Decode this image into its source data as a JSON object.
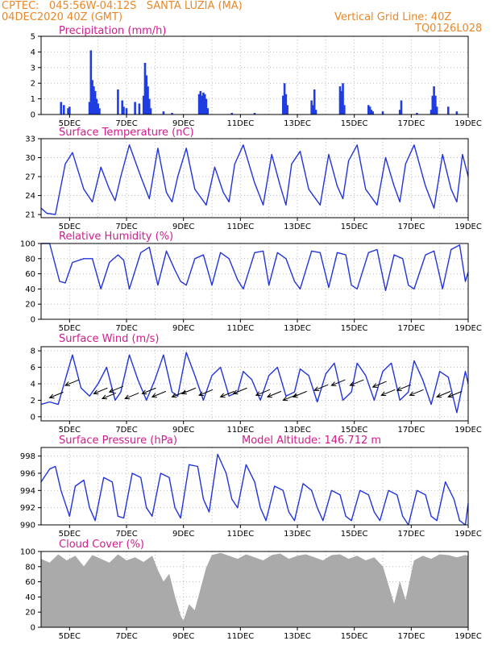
{
  "header": {
    "line1_left": "CPTEC:   045:56W-04:12S   SANTA LUZIA (MA)",
    "line2_left": "04DEC2020 40Z (GMT)",
    "line1_right": "Vertical Grid Line: 40Z",
    "line2_right": "TQ0126L028"
  },
  "colors": {
    "header": "#e8882a",
    "title": "#d01c8b",
    "series": "#2233dd",
    "bars": "#1f3de0",
    "cloud": "#aaaaaa",
    "grid": "#bbbbbb"
  },
  "chart_data": [
    {
      "type": "bar",
      "title": "Precipitation (mm/h)",
      "x_tick_labels": [
        "5DEC",
        "7DEC",
        "9DEC",
        "11DEC",
        "13DEC",
        "15DEC",
        "17DEC",
        "19DEC"
      ],
      "y_ticks": [
        0,
        1,
        2,
        3,
        4,
        5
      ],
      "ylim": [
        0,
        5
      ],
      "x": [
        4.7,
        4.8,
        4.95,
        5.0,
        5.7,
        5.75,
        5.8,
        5.85,
        5.9,
        5.95,
        6.0,
        6.05,
        6.7,
        6.85,
        6.9,
        7.0,
        7.3,
        7.45,
        7.6,
        7.65,
        7.7,
        7.75,
        7.8,
        7.85,
        8.3,
        8.6,
        9.55,
        9.6,
        9.65,
        9.7,
        9.75,
        9.8,
        9.85,
        10.7,
        11.5,
        12.5,
        12.55,
        12.6,
        12.65,
        13.5,
        13.55,
        13.6,
        13.65,
        14.5,
        14.55,
        14.6,
        14.65,
        15.5,
        15.55,
        15.6,
        15.65,
        16.0,
        16.6,
        16.65,
        17.2,
        17.7,
        17.75,
        17.8,
        17.85,
        17.9,
        18.3,
        18.6
      ],
      "values": [
        0.8,
        0.6,
        0.4,
        0.5,
        0.8,
        4.1,
        2.2,
        1.8,
        1.5,
        1.0,
        0.7,
        0.4,
        1.6,
        0.9,
        0.5,
        0.4,
        0.8,
        0.7,
        1.2,
        3.3,
        2.5,
        1.8,
        1.0,
        0.4,
        0.2,
        0.1,
        1.3,
        1.5,
        1.2,
        1.4,
        1.3,
        1.0,
        0.4,
        0.1,
        0.1,
        1.2,
        2.0,
        1.3,
        0.6,
        0.9,
        0.6,
        1.6,
        0.3,
        1.8,
        1.5,
        2.0,
        0.6,
        0.6,
        0.5,
        0.3,
        0.2,
        0.2,
        0.3,
        0.9,
        0.1,
        0.3,
        1.2,
        1.8,
        1.2,
        0.5,
        0.5,
        0.2
      ]
    },
    {
      "type": "line",
      "title": "Surface Temperature (nC)",
      "x_tick_labels": [
        "5DEC",
        "7DEC",
        "9DEC",
        "11DEC",
        "13DEC",
        "15DEC",
        "17DEC",
        "19DEC"
      ],
      "y_ticks": [
        21,
        24,
        27,
        30,
        33
      ],
      "ylim": [
        20.5,
        33
      ],
      "x": [
        4.0,
        4.2,
        4.5,
        4.85,
        5.1,
        5.5,
        5.8,
        6.1,
        6.4,
        6.6,
        6.8,
        7.1,
        7.5,
        7.8,
        8.1,
        8.4,
        8.6,
        8.8,
        9.1,
        9.4,
        9.8,
        10.1,
        10.4,
        10.6,
        10.8,
        11.1,
        11.5,
        11.8,
        12.1,
        12.4,
        12.6,
        12.8,
        13.1,
        13.4,
        13.8,
        14.1,
        14.4,
        14.6,
        14.8,
        15.1,
        15.4,
        15.8,
        16.1,
        16.4,
        16.6,
        16.8,
        17.1,
        17.5,
        17.8,
        18.1,
        18.4,
        18.6,
        18.8,
        19.0
      ],
      "values": [
        22.0,
        21.2,
        21.0,
        29.0,
        30.8,
        25.0,
        23.0,
        28.5,
        25.0,
        23.2,
        27.0,
        32.0,
        27.0,
        23.5,
        31.5,
        24.5,
        23.0,
        27.0,
        31.5,
        25.0,
        22.5,
        28.5,
        24.5,
        23.0,
        29.0,
        32.0,
        26.0,
        22.5,
        30.5,
        25.5,
        22.5,
        29.0,
        31.0,
        25.0,
        22.5,
        30.5,
        25.5,
        23.5,
        29.5,
        32.0,
        25.0,
        22.5,
        30.0,
        25.5,
        23.0,
        29.0,
        32.0,
        25.5,
        22.0,
        30.5,
        25.0,
        23.0,
        30.5,
        27.0
      ]
    },
    {
      "type": "line",
      "title": "Relative Humidity (%)",
      "x_tick_labels": [
        "5DEC",
        "7DEC",
        "9DEC",
        "11DEC",
        "13DEC",
        "15DEC",
        "17DEC",
        "19DEC"
      ],
      "y_ticks": [
        0,
        20,
        40,
        60,
        80,
        100
      ],
      "ylim": [
        0,
        100
      ],
      "x": [
        4.0,
        4.3,
        4.65,
        4.85,
        5.1,
        5.5,
        5.8,
        6.1,
        6.4,
        6.7,
        6.9,
        7.1,
        7.5,
        7.8,
        8.1,
        8.4,
        8.7,
        8.9,
        9.1,
        9.4,
        9.7,
        10.0,
        10.3,
        10.6,
        10.9,
        11.1,
        11.5,
        11.8,
        12.0,
        12.3,
        12.6,
        12.9,
        13.1,
        13.5,
        13.8,
        14.1,
        14.4,
        14.7,
        14.9,
        15.1,
        15.5,
        15.8,
        16.1,
        16.4,
        16.7,
        16.9,
        17.1,
        17.5,
        17.8,
        18.1,
        18.4,
        18.7,
        18.9,
        19.0
      ],
      "values": [
        100,
        100,
        50,
        48,
        75,
        80,
        80,
        40,
        75,
        85,
        78,
        40,
        88,
        95,
        45,
        90,
        65,
        50,
        45,
        80,
        85,
        45,
        88,
        80,
        52,
        40,
        88,
        90,
        45,
        88,
        80,
        50,
        40,
        90,
        88,
        42,
        88,
        85,
        45,
        40,
        88,
        92,
        38,
        85,
        80,
        45,
        40,
        85,
        90,
        40,
        92,
        98,
        50,
        62
      ]
    },
    {
      "type": "line",
      "title": "Surface Wind (m/s)",
      "x_tick_labels": [
        "5DEC",
        "7DEC",
        "9DEC",
        "11DEC",
        "13DEC",
        "15DEC",
        "17DEC",
        "19DEC"
      ],
      "y_ticks": [
        0,
        2,
        4,
        6,
        8
      ],
      "ylim": [
        -0.5,
        8.5
      ],
      "x": [
        4.0,
        4.3,
        4.6,
        4.85,
        5.1,
        5.4,
        5.7,
        6.0,
        6.3,
        6.6,
        6.8,
        7.1,
        7.4,
        7.7,
        8.0,
        8.3,
        8.6,
        8.8,
        9.1,
        9.4,
        9.7,
        10.0,
        10.3,
        10.6,
        10.9,
        11.1,
        11.4,
        11.7,
        12.0,
        12.3,
        12.6,
        12.9,
        13.1,
        13.4,
        13.7,
        14.0,
        14.3,
        14.6,
        14.9,
        15.1,
        15.4,
        15.7,
        16.0,
        16.3,
        16.6,
        16.9,
        17.1,
        17.4,
        17.7,
        18.0,
        18.3,
        18.6,
        18.9,
        19.0
      ],
      "values": [
        1.5,
        1.8,
        1.5,
        4.5,
        7.5,
        3.5,
        2.5,
        4.0,
        6.0,
        2.0,
        3.0,
        7.5,
        4.5,
        2.0,
        4.5,
        7.5,
        3.0,
        2.5,
        7.8,
        5.0,
        2.0,
        5.0,
        6.0,
        2.5,
        3.0,
        5.5,
        4.5,
        2.0,
        5.0,
        6.0,
        2.5,
        3.0,
        5.8,
        5.0,
        1.8,
        5.2,
        6.5,
        2.0,
        3.0,
        6.5,
        5.0,
        2.0,
        5.5,
        6.5,
        2.0,
        3.0,
        6.8,
        4.5,
        1.5,
        5.5,
        4.8,
        0.5,
        5.5,
        4.0
      ],
      "wind_arrows": [
        [
          4.3,
          2.3
        ],
        [
          4.85,
          3.8
        ],
        [
          5.85,
          2.8
        ],
        [
          6.15,
          2.2
        ],
        [
          6.4,
          3.0
        ],
        [
          6.95,
          2.2
        ],
        [
          7.55,
          2.8
        ],
        [
          7.9,
          2.4
        ],
        [
          8.6,
          2.4
        ],
        [
          8.95,
          2.8
        ],
        [
          9.55,
          2.6
        ],
        [
          10.3,
          2.4
        ],
        [
          10.75,
          2.8
        ],
        [
          11.55,
          2.6
        ],
        [
          11.95,
          2.4
        ],
        [
          12.5,
          2.0
        ],
        [
          12.85,
          2.4
        ],
        [
          13.6,
          3.2
        ],
        [
          14.2,
          3.8
        ],
        [
          14.85,
          3.8
        ],
        [
          15.65,
          3.6
        ],
        [
          15.95,
          2.6
        ],
        [
          16.5,
          3.2
        ],
        [
          16.95,
          2.6
        ],
        [
          17.9,
          2.4
        ],
        [
          18.3,
          2.4
        ]
      ]
    },
    {
      "type": "line",
      "title": "Surface Pressure (hPa)",
      "annotation": "Model Altitude: 146.712 m",
      "x_tick_labels": [
        "5DEC",
        "7DEC",
        "9DEC",
        "11DEC",
        "13DEC",
        "15DEC",
        "17DEC",
        "19DEC"
      ],
      "y_ticks": [
        990,
        992,
        994,
        996,
        998
      ],
      "ylim": [
        990,
        999
      ],
      "x": [
        4.0,
        4.3,
        4.5,
        4.7,
        5.0,
        5.2,
        5.5,
        5.7,
        5.9,
        6.2,
        6.5,
        6.7,
        6.9,
        7.2,
        7.5,
        7.7,
        7.9,
        8.2,
        8.5,
        8.7,
        8.9,
        9.2,
        9.5,
        9.7,
        9.9,
        10.2,
        10.5,
        10.7,
        10.9,
        11.2,
        11.5,
        11.7,
        11.9,
        12.2,
        12.5,
        12.7,
        12.9,
        13.2,
        13.5,
        13.7,
        13.9,
        14.2,
        14.5,
        14.7,
        14.9,
        15.2,
        15.5,
        15.7,
        15.9,
        16.2,
        16.5,
        16.7,
        16.9,
        17.2,
        17.5,
        17.7,
        17.9,
        18.2,
        18.5,
        18.7,
        18.9,
        19.0
      ],
      "values": [
        995.0,
        996.5,
        996.8,
        994.0,
        991.0,
        994.5,
        995.2,
        992.0,
        990.5,
        995.5,
        995.0,
        991.0,
        990.8,
        996.0,
        995.5,
        992.0,
        991.0,
        996.0,
        995.5,
        992.0,
        990.8,
        997.0,
        996.8,
        993.0,
        991.5,
        998.2,
        996.0,
        993.0,
        992.0,
        997.0,
        995.0,
        992.0,
        990.5,
        994.5,
        994.0,
        991.5,
        990.5,
        994.8,
        994.0,
        992.0,
        990.5,
        994.0,
        993.5,
        991.0,
        990.5,
        994.0,
        993.5,
        991.5,
        990.5,
        994.0,
        993.5,
        991.0,
        990.0,
        994.0,
        993.5,
        991.0,
        990.5,
        995.0,
        993.0,
        990.5,
        990.0,
        992.5
      ]
    },
    {
      "type": "area",
      "title": "Cloud Cover (%)",
      "x_tick_labels": [
        "5DEC",
        "7DEC",
        "9DEC",
        "11DEC",
        "13DEC",
        "15DEC",
        "17DEC",
        "19DEC"
      ],
      "y_ticks": [
        0,
        20,
        40,
        60,
        80,
        100
      ],
      "ylim": [
        0,
        100
      ],
      "x": [
        4.0,
        4.3,
        4.6,
        4.9,
        5.2,
        5.5,
        5.8,
        6.1,
        6.4,
        6.7,
        7.0,
        7.3,
        7.6,
        7.9,
        8.1,
        8.3,
        8.5,
        8.7,
        8.9,
        9.0,
        9.2,
        9.4,
        9.6,
        9.8,
        10.0,
        10.3,
        10.6,
        10.9,
        11.2,
        11.5,
        11.8,
        12.1,
        12.4,
        12.7,
        13.0,
        13.3,
        13.6,
        13.9,
        14.2,
        14.5,
        14.8,
        15.1,
        15.4,
        15.7,
        16.0,
        16.2,
        16.4,
        16.6,
        16.8,
        17.1,
        17.4,
        17.7,
        18.0,
        18.3,
        18.6,
        18.9,
        19.0
      ],
      "values": [
        90,
        85,
        96,
        88,
        94,
        80,
        95,
        90,
        85,
        96,
        88,
        92,
        86,
        94,
        75,
        60,
        70,
        40,
        15,
        8,
        30,
        22,
        50,
        78,
        95,
        98,
        94,
        90,
        96,
        92,
        88,
        95,
        97,
        90,
        94,
        96,
        92,
        88,
        95,
        96,
        90,
        94,
        88,
        92,
        80,
        55,
        30,
        60,
        35,
        88,
        94,
        90,
        96,
        95,
        92,
        95,
        94
      ]
    }
  ]
}
